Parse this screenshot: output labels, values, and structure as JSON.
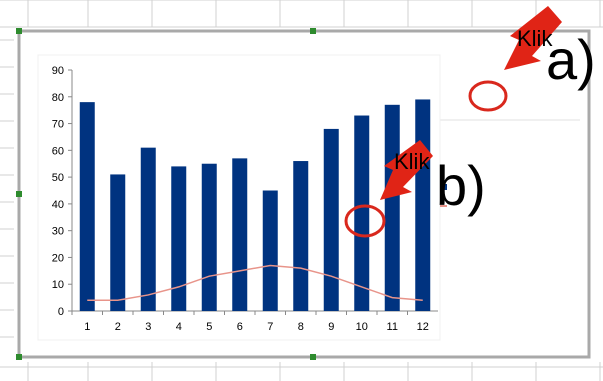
{
  "chart_data": {
    "type": "bar",
    "categories": [
      "1",
      "2",
      "3",
      "4",
      "5",
      "6",
      "7",
      "8",
      "9",
      "10",
      "11",
      "12"
    ],
    "series": [
      {
        "values": [
          78,
          51,
          61,
          54,
          55,
          57,
          45,
          56,
          68,
          73,
          77,
          79
        ],
        "color": "#003380"
      },
      {
        "values": [
          4,
          4,
          6,
          9,
          13,
          15,
          17,
          16,
          13,
          9,
          5,
          4
        ],
        "color": "#e8948a"
      }
    ],
    "ylim": [
      0,
      90
    ],
    "yticks": [
      "0",
      "10",
      "20",
      "30",
      "40",
      "50",
      "60",
      "70",
      "80",
      "90"
    ],
    "grid": false,
    "legend_marker_color": "#003380"
  },
  "annotations": {
    "a": {
      "klik": "Klik",
      "letter": "a)"
    },
    "b": {
      "klik": "Klik",
      "letter": "b)"
    },
    "arrow_color": "#e02416",
    "circle_color": "#d9281d"
  },
  "colors": {
    "sheet_grid": "#d0d0d0",
    "selection_frame": "#a9a9a9",
    "handle": "#2e8b2e"
  }
}
